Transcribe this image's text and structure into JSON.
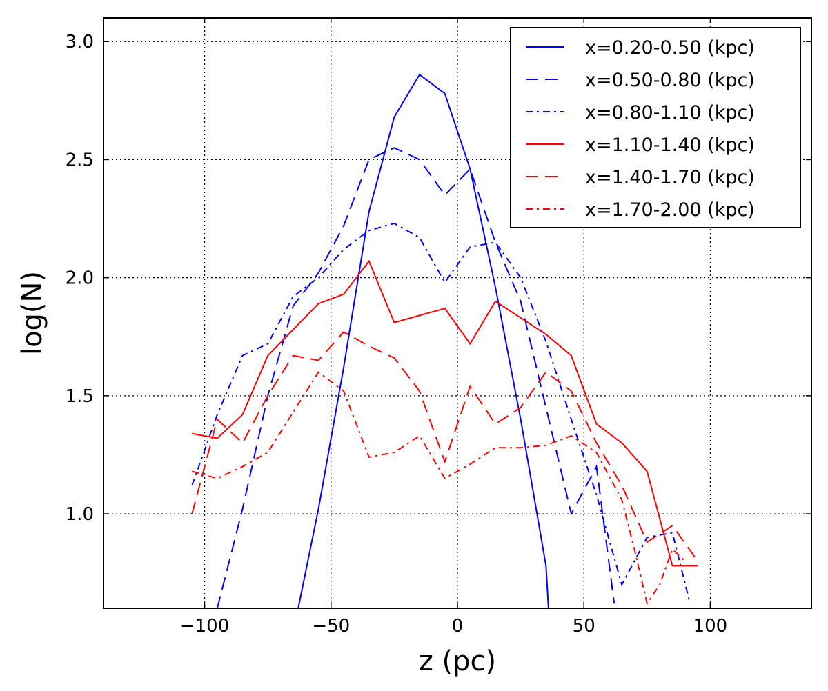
{
  "chart_data": {
    "type": "line",
    "title": "",
    "xlabel": "z (pc)",
    "ylabel": "log(N)",
    "xlim": [
      -140,
      140
    ],
    "ylim": [
      0.6,
      3.1
    ],
    "xticks": [
      -100,
      -50,
      0,
      50,
      100
    ],
    "xtick_labels": [
      "−100",
      "−50",
      "0",
      "50",
      "100"
    ],
    "yticks": [
      1.0,
      1.5,
      2.0,
      2.5,
      3.0
    ],
    "ytick_labels": [
      "1.0",
      "1.5",
      "2.0",
      "2.5",
      "3.0"
    ],
    "grid": true,
    "legend_position": "top-right",
    "series": [
      {
        "name": "x=0.20-0.50 (kpc)",
        "color": "#0000ff",
        "linestyle": "solid",
        "x": [
          -63,
          -55,
          -45,
          -35,
          -25,
          -15,
          -5,
          5,
          15,
          25,
          35,
          36
        ],
        "y": [
          0.6,
          1.02,
          1.62,
          2.28,
          2.68,
          2.86,
          2.78,
          2.46,
          1.96,
          1.4,
          0.78,
          0.6
        ]
      },
      {
        "name": "x=0.50-0.80 (kpc)",
        "color": "#0000ff",
        "linestyle": "dashed",
        "x": [
          -95,
          -85,
          -75,
          -65,
          -55,
          -45,
          -35,
          -25,
          -15,
          -5,
          5,
          15,
          25,
          35,
          45,
          55,
          62
        ],
        "y": [
          0.6,
          1.02,
          1.5,
          1.88,
          2.02,
          2.22,
          2.5,
          2.55,
          2.5,
          2.35,
          2.46,
          2.15,
          1.9,
          1.45,
          1.0,
          1.2,
          0.62
        ]
      },
      {
        "name": "x=0.80-1.10 (kpc)",
        "color": "#0000ff",
        "linestyle": "dashdot",
        "x": [
          -105,
          -95,
          -85,
          -75,
          -65,
          -55,
          -45,
          -35,
          -25,
          -15,
          -5,
          5,
          15,
          25,
          35,
          45,
          55,
          65,
          75,
          85,
          92
        ],
        "y": [
          1.12,
          1.42,
          1.67,
          1.72,
          1.92,
          2.0,
          2.12,
          2.2,
          2.23,
          2.17,
          1.98,
          2.13,
          2.15,
          2.0,
          1.73,
          1.4,
          1.08,
          0.7,
          0.9,
          0.92,
          0.62
        ]
      },
      {
        "name": "x=1.10-1.40 (kpc)",
        "color": "#ff0000",
        "linestyle": "solid",
        "x": [
          -105,
          -95,
          -85,
          -75,
          -65,
          -55,
          -45,
          -35,
          -25,
          -15,
          -5,
          5,
          15,
          25,
          35,
          45,
          55,
          65,
          75,
          85,
          95
        ],
        "y": [
          1.34,
          1.32,
          1.42,
          1.67,
          1.78,
          1.89,
          1.93,
          2.07,
          1.81,
          1.84,
          1.87,
          1.72,
          1.9,
          1.83,
          1.76,
          1.67,
          1.38,
          1.3,
          1.18,
          0.78,
          0.78
        ]
      },
      {
        "name": "x=1.40-1.70 (kpc)",
        "color": "#ff0000",
        "linestyle": "dashed",
        "x": [
          -105,
          -95,
          -85,
          -75,
          -65,
          -55,
          -45,
          -35,
          -25,
          -15,
          -5,
          5,
          15,
          25,
          35,
          45,
          55,
          65,
          75,
          85,
          95
        ],
        "y": [
          1.0,
          1.4,
          1.3,
          1.5,
          1.67,
          1.65,
          1.77,
          1.71,
          1.66,
          1.52,
          1.22,
          1.54,
          1.38,
          1.45,
          1.6,
          1.52,
          1.3,
          1.12,
          0.88,
          0.95,
          0.8
        ]
      },
      {
        "name": "x=1.70-2.00 (kpc)",
        "color": "#ff0000",
        "linestyle": "dashdot",
        "x": [
          -105,
          -95,
          -85,
          -75,
          -65,
          -55,
          -45,
          -35,
          -25,
          -15,
          -5,
          5,
          15,
          25,
          35,
          45,
          55,
          65,
          70,
          75,
          80,
          85,
          90
        ],
        "y": [
          1.18,
          1.15,
          1.2,
          1.26,
          1.43,
          1.6,
          1.52,
          1.24,
          1.26,
          1.33,
          1.15,
          1.21,
          1.28,
          1.28,
          1.29,
          1.33,
          1.26,
          1.06,
          0.85,
          0.62,
          0.7,
          0.85,
          0.8
        ]
      }
    ]
  }
}
